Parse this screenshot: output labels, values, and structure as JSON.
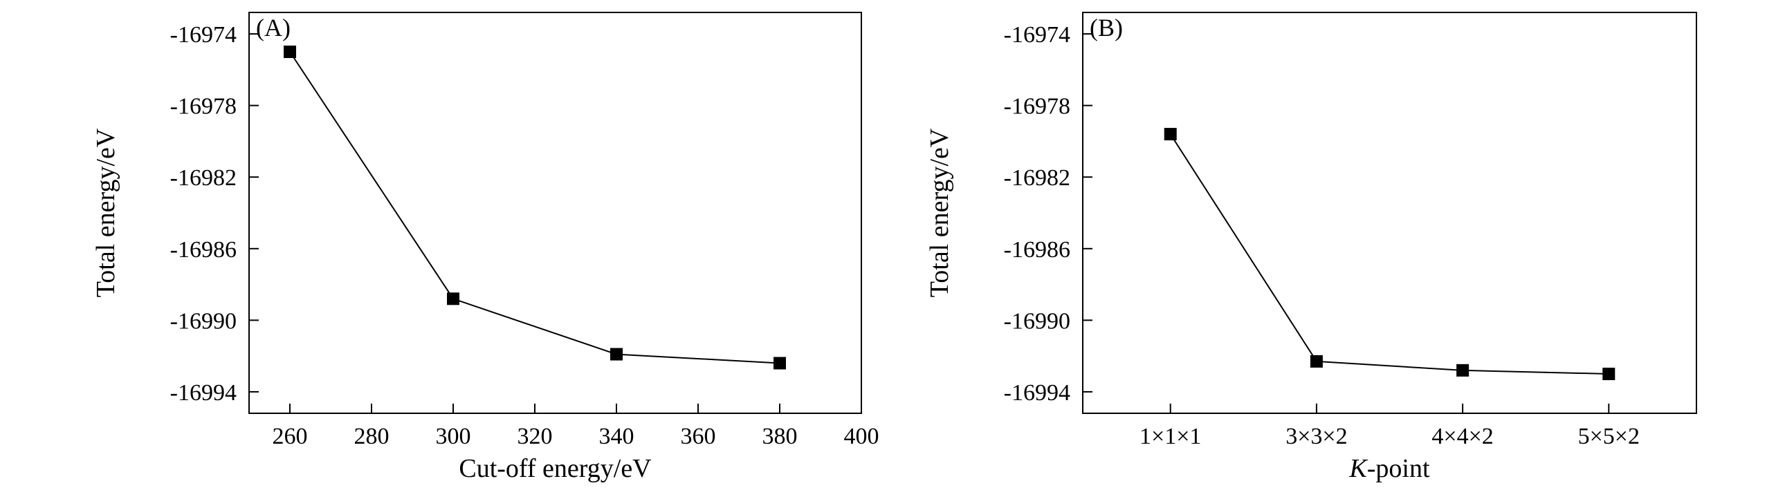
{
  "chart_data": [
    {
      "type": "line",
      "panel_label": "(A)",
      "xlabel": "Cut-off energy/eV",
      "ylabel": "Total energy/eV",
      "xlim": [
        250,
        400
      ],
      "ylim": [
        -16995.2,
        -16972.8
      ],
      "x_ticks": [
        "260",
        "280",
        "300",
        "320",
        "340",
        "360",
        "380",
        "400"
      ],
      "x_tick_values": [
        260,
        280,
        300,
        320,
        340,
        360,
        380,
        400
      ],
      "y_ticks": [
        "-16974",
        "-16978",
        "-16982",
        "-16986",
        "-16990",
        "-16994"
      ],
      "y_tick_values": [
        -16974,
        -16978,
        -16982,
        -16986,
        -16990,
        -16994
      ],
      "x": [
        260,
        300,
        340,
        380
      ],
      "y": [
        -16975.0,
        -16988.8,
        -16991.9,
        -16992.4
      ],
      "marker": "square",
      "grid": false
    },
    {
      "type": "line",
      "panel_label": "(B)",
      "xlabel_italic": "K",
      "xlabel_rest": "-point",
      "ylabel": "Total energy/eV",
      "categories": [
        "1×1×1",
        "3×3×2",
        "4×4×2",
        "5×5×2"
      ],
      "xlim": [
        0.4,
        4.6
      ],
      "ylim": [
        -16995.2,
        -16972.8
      ],
      "y_ticks": [
        "-16974",
        "-16978",
        "-16982",
        "-16986",
        "-16990",
        "-16994"
      ],
      "y_tick_values": [
        -16974,
        -16978,
        -16982,
        -16986,
        -16990,
        -16994
      ],
      "values": [
        -16979.6,
        -16992.3,
        -16992.8,
        -16993.0
      ],
      "marker": "square",
      "grid": false
    }
  ]
}
